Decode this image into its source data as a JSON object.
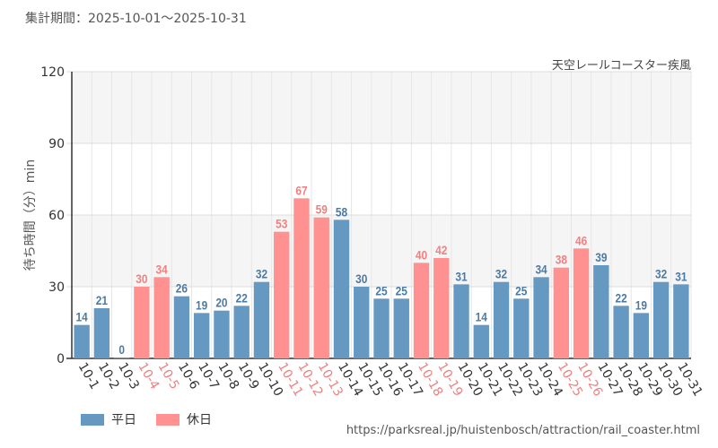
{
  "header": {
    "period_label": "集計期間：",
    "period_range": "2025-10-01～2025-10-31",
    "attraction": "天空レールコースター疾風"
  },
  "legend": {
    "weekday_label": "平日",
    "holiday_label": "休日"
  },
  "source_url": "https://parksreal.jp/huistenbosch/attraction/rail_coaster.html",
  "colors": {
    "weekday": "#6699c2",
    "holiday": "#ff9191",
    "weekday_text": "#4a7aa6",
    "holiday_text": "#f08080"
  },
  "chart_data": {
    "type": "bar",
    "title": "天空レールコースター疾風",
    "xlabel": "",
    "ylabel": "待ち時間（分）min",
    "ylim": [
      0,
      120
    ],
    "yticks": [
      "0",
      "30",
      "60",
      "90",
      "120"
    ],
    "categories": [
      "10-1",
      "10-2",
      "10-3",
      "10-4",
      "10-5",
      "10-6",
      "10-7",
      "10-8",
      "10-9",
      "10-10",
      "10-11",
      "10-12",
      "10-13",
      "10-14",
      "10-15",
      "10-16",
      "10-17",
      "10-18",
      "10-19",
      "10-20",
      "10-21",
      "10-22",
      "10-23",
      "10-24",
      "10-25",
      "10-26",
      "10-27",
      "10-28",
      "10-29",
      "10-30",
      "10-31"
    ],
    "values": [
      14,
      21,
      0,
      30,
      34,
      26,
      19,
      20,
      22,
      32,
      53,
      67,
      59,
      58,
      30,
      25,
      25,
      40,
      42,
      31,
      14,
      32,
      25,
      34,
      38,
      46,
      39,
      22,
      19,
      32,
      31
    ],
    "day_type": [
      "weekday",
      "weekday",
      "weekday",
      "holiday",
      "holiday",
      "weekday",
      "weekday",
      "weekday",
      "weekday",
      "weekday",
      "holiday",
      "holiday",
      "holiday",
      "weekday",
      "weekday",
      "weekday",
      "weekday",
      "holiday",
      "holiday",
      "weekday",
      "weekday",
      "weekday",
      "weekday",
      "weekday",
      "holiday",
      "holiday",
      "weekday",
      "weekday",
      "weekday",
      "weekday",
      "weekday"
    ],
    "series": [
      {
        "name": "平日",
        "key": "weekday"
      },
      {
        "name": "休日",
        "key": "holiday"
      }
    ],
    "legend_position": "bottom-left",
    "grid": true
  }
}
